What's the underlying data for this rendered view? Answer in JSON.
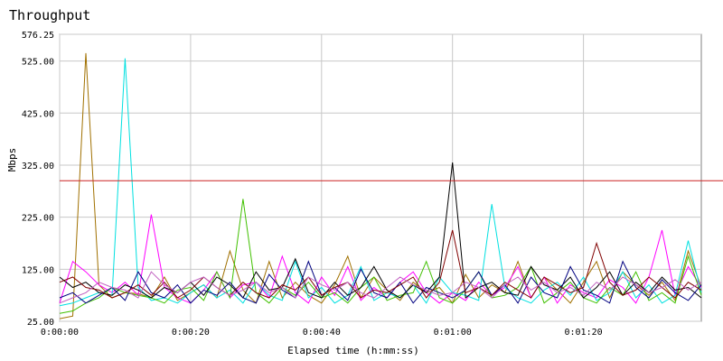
{
  "chart_data": {
    "type": "line",
    "title": "Throughput",
    "xlabel": "Elapsed time (h:mm:ss)",
    "ylabel": "Mbps",
    "xlim": [
      0,
      98
    ],
    "ylim": [
      25,
      576.25
    ],
    "x_ticks": [
      {
        "value": 0,
        "label": "0:00:00"
      },
      {
        "value": 20,
        "label": "0:00:20"
      },
      {
        "value": 40,
        "label": "0:00:40"
      },
      {
        "value": 60,
        "label": "0:01:00"
      },
      {
        "value": 80,
        "label": "0:01:20"
      }
    ],
    "y_ticks": [
      {
        "value": 25,
        "label": "25.00"
      },
      {
        "value": 125,
        "label": "125.00"
      },
      {
        "value": 225,
        "label": "225.00"
      },
      {
        "value": 325,
        "label": "325.00"
      },
      {
        "value": 425,
        "label": "425.00"
      },
      {
        "value": 525,
        "label": "525.00"
      },
      {
        "value": 576.25,
        "label": "576.25"
      }
    ],
    "grid": true,
    "reference_line": {
      "value": 295,
      "color": "#cc2222"
    },
    "x": [
      0,
      2,
      4,
      6,
      8,
      10,
      12,
      14,
      16,
      18,
      20,
      22,
      24,
      26,
      28,
      30,
      32,
      34,
      36,
      38,
      40,
      42,
      44,
      46,
      48,
      50,
      52,
      54,
      56,
      58,
      60,
      62,
      64,
      66,
      68,
      70,
      72,
      74,
      76,
      78,
      80,
      82,
      84,
      86,
      88,
      90,
      92,
      94,
      96,
      98
    ],
    "series": [
      {
        "color": "#a07000",
        "values": [
          30,
          35,
          540,
          95,
          70,
          80,
          78,
          70,
          110,
          65,
          80,
          95,
          70,
          160,
          85,
          60,
          140,
          70,
          100,
          75,
          60,
          95,
          150,
          70,
          110,
          85,
          65,
          100,
          80,
          90,
          60,
          115,
          70,
          95,
          80,
          140,
          70,
          110,
          85,
          60,
          100,
          140,
          70,
          120,
          95,
          75,
          100,
          65,
          160,
          90
        ]
      },
      {
        "color": "#ff00ff",
        "values": [
          60,
          140,
          120,
          95,
          80,
          100,
          75,
          230,
          90,
          70,
          60,
          85,
          120,
          70,
          95,
          100,
          70,
          150,
          80,
          60,
          110,
          75,
          130,
          65,
          90,
          70,
          100,
          120,
          80,
          60,
          80,
          65,
          100,
          75,
          90,
          130,
          70,
          110,
          60,
          95,
          80,
          70,
          105,
          90,
          60,
          110,
          200,
          75,
          130,
          90
        ]
      },
      {
        "color": "#00e0e0",
        "values": [
          55,
          60,
          70,
          80,
          75,
          530,
          90,
          65,
          70,
          60,
          80,
          95,
          70,
          85,
          60,
          100,
          75,
          65,
          140,
          70,
          90,
          60,
          75,
          130,
          65,
          80,
          70,
          95,
          60,
          110,
          80,
          75,
          65,
          250,
          90,
          70,
          60,
          85,
          100,
          75,
          110,
          65,
          80,
          120,
          70,
          95,
          60,
          75,
          180,
          80
        ]
      },
      {
        "color": "#40c000",
        "values": [
          40,
          45,
          60,
          70,
          90,
          80,
          75,
          70,
          60,
          85,
          90,
          65,
          120,
          70,
          260,
          80,
          60,
          90,
          75,
          100,
          70,
          80,
          60,
          90,
          110,
          65,
          75,
          80,
          140,
          70,
          60,
          85,
          120,
          70,
          75,
          90,
          130,
          60,
          80,
          100,
          70,
          60,
          90,
          75,
          120,
          65,
          80,
          60,
          150,
          75
        ]
      },
      {
        "color": "#000000",
        "values": [
          110,
          90,
          100,
          80,
          75,
          95,
          85,
          70,
          90,
          80,
          100,
          75,
          110,
          95,
          70,
          120,
          85,
          90,
          145,
          80,
          70,
          100,
          75,
          90,
          130,
          85,
          70,
          95,
          80,
          110,
          330,
          70,
          90,
          100,
          80,
          75,
          130,
          95,
          85,
          110,
          70,
          90,
          120,
          75,
          100,
          80,
          110,
          85,
          90,
          70
        ]
      },
      {
        "color": "#000080",
        "values": [
          70,
          80,
          60,
          75,
          90,
          65,
          120,
          80,
          70,
          95,
          60,
          85,
          75,
          100,
          70,
          60,
          115,
          85,
          70,
          140,
          75,
          90,
          65,
          125,
          80,
          70,
          100,
          60,
          90,
          80,
          70,
          85,
          120,
          75,
          95,
          60,
          110,
          80,
          70,
          130,
          85,
          75,
          60,
          140,
          90,
          70,
          105,
          80,
          65,
          95
        ]
      },
      {
        "color": "#800000",
        "values": [
          100,
          110,
          90,
          85,
          70,
          80,
          95,
          75,
          100,
          70,
          85,
          110,
          90,
          75,
          100,
          80,
          70,
          95,
          85,
          110,
          75,
          90,
          100,
          70,
          85,
          80,
          95,
          110,
          70,
          100,
          200,
          80,
          90,
          75,
          100,
          85,
          70,
          110,
          95,
          80,
          90,
          175,
          100,
          75,
          85,
          110,
          90,
          70,
          100,
          85
        ]
      },
      {
        "color": "#c060c0",
        "values": [
          60,
          70,
          80,
          100,
          90,
          85,
          70,
          120,
          95,
          80,
          100,
          110,
          90,
          75,
          85,
          100,
          80,
          90,
          70,
          110,
          95,
          85,
          100,
          80,
          70,
          90,
          110,
          95,
          85,
          75,
          80,
          100,
          90,
          70,
          95,
          110,
          85,
          100,
          80,
          90,
          75,
          100,
          85,
          110,
          95,
          80,
          90,
          105,
          85,
          100
        ]
      }
    ]
  }
}
